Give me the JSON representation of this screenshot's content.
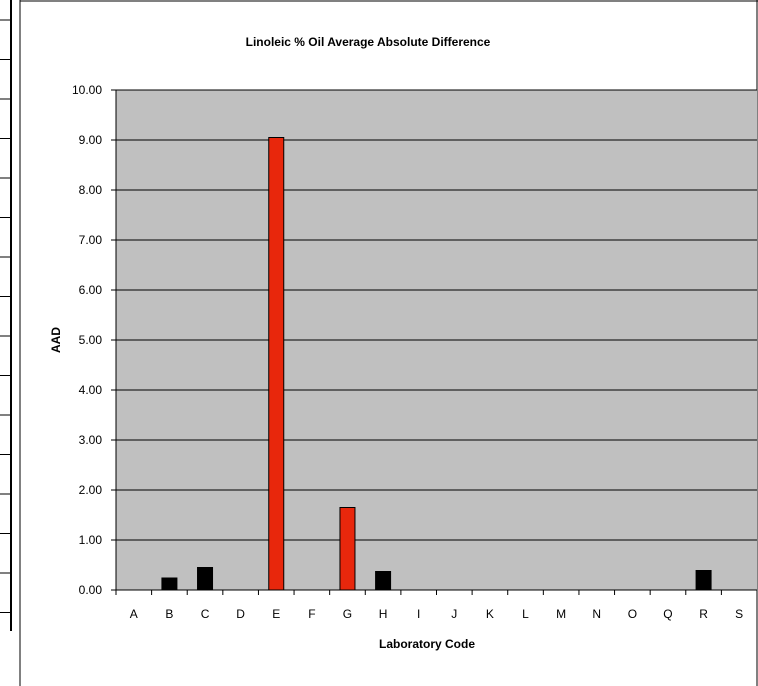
{
  "chart_data": {
    "type": "bar",
    "title": "Linoleic % Oil Average Absolute Difference",
    "xlabel": "Laboratory Code",
    "ylabel": "AAD",
    "ylim": [
      0,
      10
    ],
    "yticks": [
      "0.00",
      "1.00",
      "2.00",
      "3.00",
      "4.00",
      "5.00",
      "6.00",
      "7.00",
      "8.00",
      "9.00",
      "10.00"
    ],
    "categories": [
      "A",
      "B",
      "C",
      "D",
      "E",
      "F",
      "G",
      "H",
      "I",
      "J",
      "K",
      "L",
      "M",
      "N",
      "O",
      "Q",
      "R",
      "S"
    ],
    "values": [
      null,
      0.24,
      0.45,
      null,
      9.05,
      null,
      1.65,
      0.37,
      null,
      null,
      null,
      null,
      null,
      null,
      null,
      null,
      0.39,
      null
    ],
    "highlight": [
      false,
      false,
      false,
      false,
      true,
      false,
      true,
      false,
      false,
      false,
      false,
      false,
      false,
      false,
      false,
      false,
      false,
      false
    ],
    "grid": true,
    "legend": "none",
    "colors": {
      "plot_background": "#c0c0c0",
      "bar_normal": "#000000",
      "bar_highlight": "#e8270c",
      "gridline": "#000000"
    }
  }
}
